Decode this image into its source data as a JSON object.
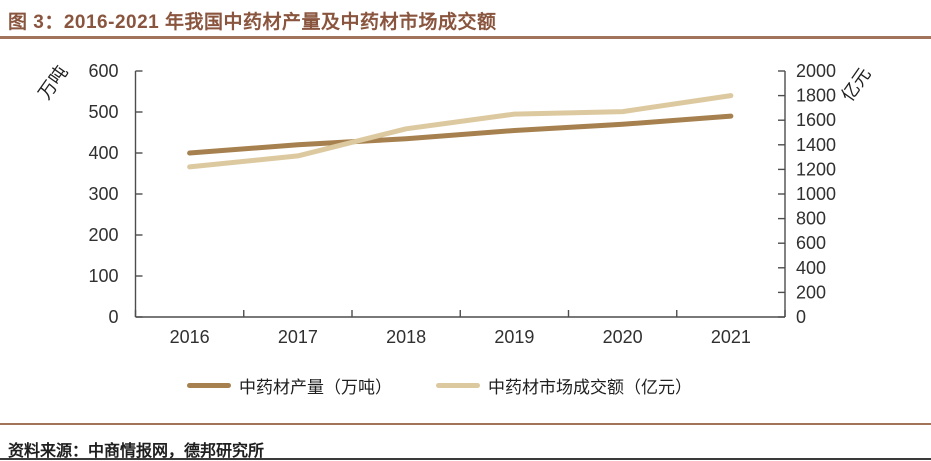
{
  "source": "资料来源：中商情报网，德邦研究所",
  "colors": {
    "title": "#8A553E",
    "rule": "#A0735A",
    "axis": "#4D4D4D",
    "tick_label": "#303030",
    "axis_title": "#1F1F1F",
    "bottom_rule": "#3A3A3A",
    "production_line": "#A6814F",
    "transaction_line": "#DCC9A0"
  },
  "chart_data": {
    "type": "line",
    "title": "图 3：2016-2021 年我国中药材产量及中药材市场成交额",
    "categories": [
      "2016",
      "2017",
      "2018",
      "2019",
      "2020",
      "2021"
    ],
    "series": [
      {
        "key": "production",
        "name": "中药材产量（万吨）",
        "axis": "left",
        "color": "#A6814F",
        "values": [
          400,
          420,
          435,
          455,
          470,
          490
        ]
      },
      {
        "key": "transaction",
        "name": "中药材市场成交额（亿元）",
        "axis": "right",
        "color": "#DCC9A0",
        "values": [
          1220,
          1310,
          1530,
          1650,
          1670,
          1800
        ]
      }
    ],
    "left_axis": {
      "label": "万吨",
      "min": 0,
      "max": 600,
      "step": 100,
      "ticks": [
        0,
        100,
        200,
        300,
        400,
        500,
        600
      ]
    },
    "right_axis": {
      "label": "亿元",
      "min": 0,
      "max": 2000,
      "step": 200,
      "ticks": [
        0,
        200,
        400,
        600,
        800,
        1000,
        1200,
        1400,
        1600,
        1800,
        2000
      ]
    },
    "legend_position": "bottom",
    "grid": false
  }
}
